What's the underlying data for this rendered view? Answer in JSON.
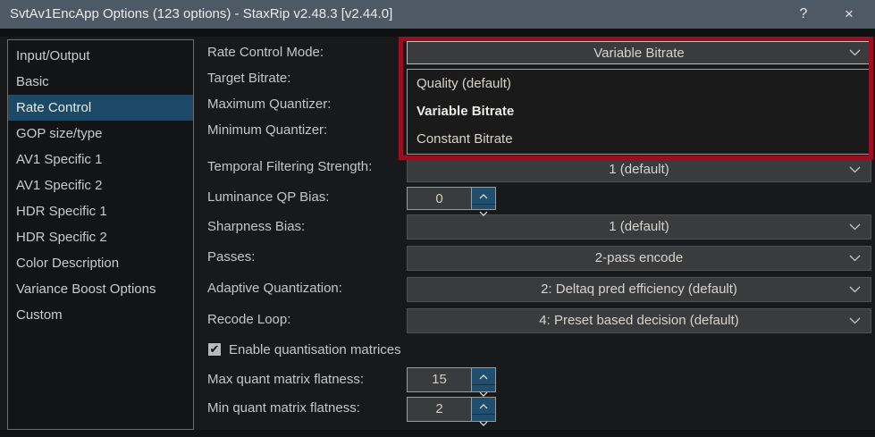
{
  "window": {
    "title": "SvtAv1EncApp Options (123 options) - StaxRip v2.48.3 [v2.44.0]",
    "help_label": "?",
    "close_label": "×"
  },
  "sidebar": {
    "items": [
      {
        "label": "Input/Output",
        "selected": false
      },
      {
        "label": "Basic",
        "selected": false
      },
      {
        "label": "Rate Control",
        "selected": true
      },
      {
        "label": "GOP size/type",
        "selected": false
      },
      {
        "label": "AV1 Specific 1",
        "selected": false
      },
      {
        "label": "AV1 Specific 2",
        "selected": false
      },
      {
        "label": "HDR Specific 1",
        "selected": false
      },
      {
        "label": "HDR Specific 2",
        "selected": false
      },
      {
        "label": "Color Description",
        "selected": false
      },
      {
        "label": "Variance Boost Options",
        "selected": false
      },
      {
        "label": "Custom",
        "selected": false
      }
    ]
  },
  "form": {
    "rate_control_mode": {
      "label": "Rate Control Mode:",
      "value": "Variable Bitrate",
      "options": [
        {
          "label": "Quality (default)",
          "selected": false
        },
        {
          "label": "Variable Bitrate",
          "selected": true
        },
        {
          "label": "Constant Bitrate",
          "selected": false
        }
      ]
    },
    "target_bitrate": {
      "label": "Target Bitrate:"
    },
    "maximum_quantizer": {
      "label": "Maximum Quantizer:"
    },
    "minimum_quantizer": {
      "label": "Minimum Quantizer:"
    },
    "temporal_filtering": {
      "label": "Temporal Filtering Strength:",
      "value": "1 (default)"
    },
    "luminance_qp_bias": {
      "label": "Luminance QP Bias:",
      "value": "0"
    },
    "sharpness_bias": {
      "label": "Sharpness Bias:",
      "value": "1 (default)"
    },
    "passes": {
      "label": "Passes:",
      "value": "2-pass encode"
    },
    "adaptive_quantization": {
      "label": "Adaptive Quantization:",
      "value": "2: Deltaq pred efficiency (default)"
    },
    "recode_loop": {
      "label": "Recode Loop:",
      "value": "4: Preset based decision (default)"
    },
    "enable_quant_matrices": {
      "label": "Enable quantisation matrices",
      "checked": true,
      "check_glyph": "✔"
    },
    "max_quant_flatness": {
      "label": "Max quant matrix flatness:",
      "value": "15"
    },
    "min_quant_flatness": {
      "label": "Min quant matrix flatness:",
      "value": "2"
    }
  },
  "annotation": {
    "type": "highlight-rectangle",
    "color": "#9a0f20"
  },
  "colors": {
    "titlebar": "#4e5966",
    "selection_blue": "#1c4a66",
    "spinner_blue": "#1f4e6e",
    "annotation_red": "#9a0f20"
  }
}
